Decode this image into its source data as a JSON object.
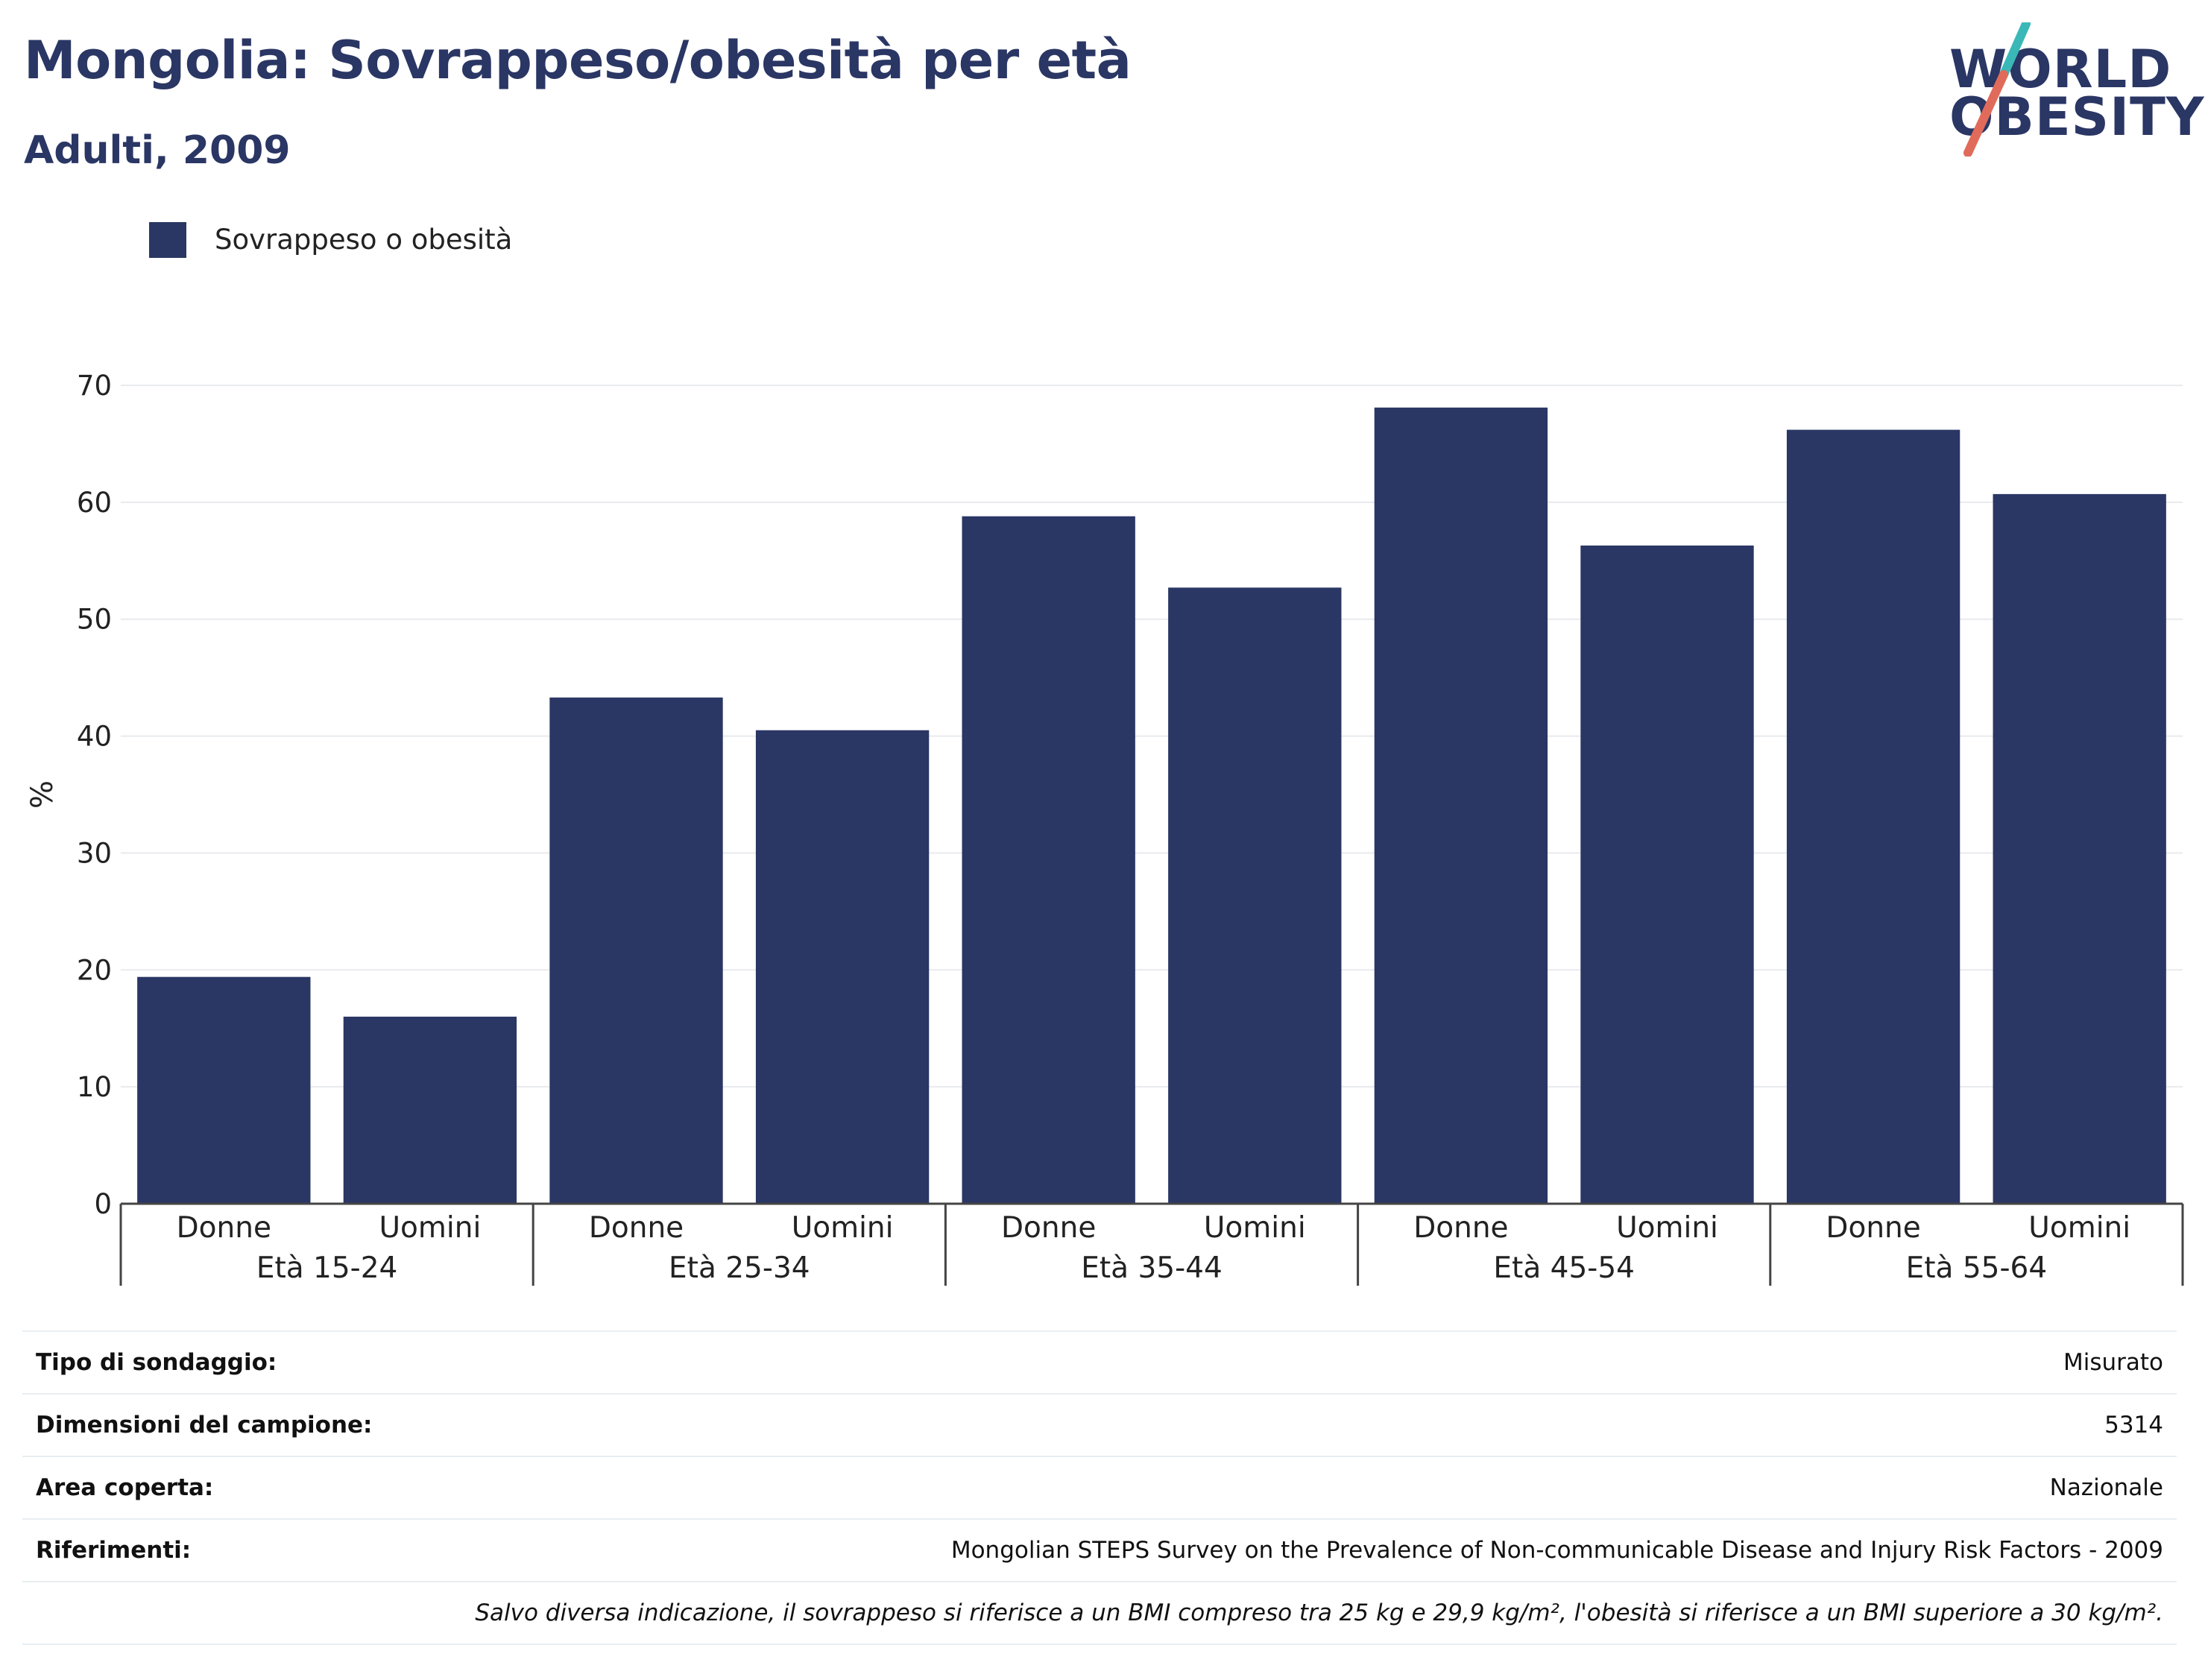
{
  "header": {
    "title": "Mongolia: Sovrappeso/obesità per età",
    "subtitle": "Adulti, 2009"
  },
  "logo": {
    "line1": "WORLD",
    "line2": "OBESITY",
    "colors": {
      "text": "#2a3664",
      "slash_top": "#3ab8b8",
      "slash_bottom": "#e06b5a"
    }
  },
  "legend": {
    "label": "Sovrappeso o obesità",
    "color": "#2a3664"
  },
  "chart_data": {
    "type": "bar",
    "groups": [
      "Età 15-24",
      "Età 25-34",
      "Età 35-44",
      "Età 45-54",
      "Età 55-64"
    ],
    "subcategories": [
      "Donne",
      "Uomini"
    ],
    "series": [
      {
        "name": "Sovrappeso o obesità",
        "color": "#2a3664",
        "values": [
          19.4,
          16.0,
          43.3,
          40.5,
          58.8,
          52.7,
          68.1,
          56.3,
          66.2,
          60.7
        ]
      }
    ],
    "ylabel": "%",
    "ylim": [
      0,
      70
    ],
    "yticks": [
      0,
      10,
      20,
      30,
      40,
      50,
      60,
      70
    ],
    "grid": true,
    "legend_position": "top-left"
  },
  "info": {
    "rows": [
      {
        "key": "Tipo di sondaggio:",
        "value": "Misurato"
      },
      {
        "key": "Dimensioni del campione:",
        "value": "5314"
      },
      {
        "key": "Area coperta:",
        "value": "Nazionale"
      },
      {
        "key": "Riferimenti:",
        "value": "Mongolian STEPS Survey on the Prevalence of Non-communicable Disease and Injury Risk Factors - 2009"
      }
    ],
    "note": "Salvo diversa indicazione, il sovrappeso si riferisce a un BMI compreso tra 25 kg e 29,9 kg/m², l'obesità si riferisce a un BMI superiore a 30 kg/m²."
  }
}
